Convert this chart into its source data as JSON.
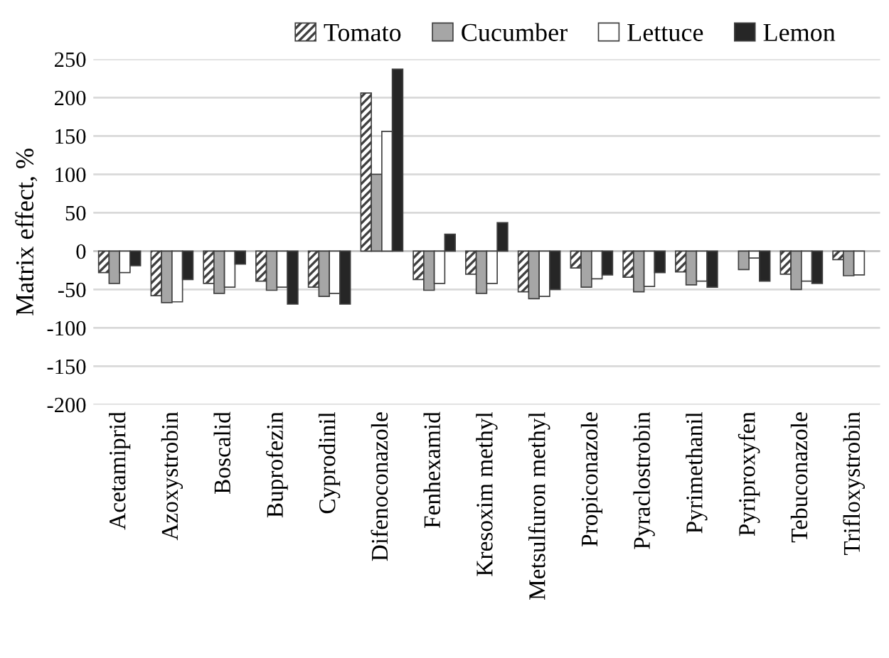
{
  "chart_data": {
    "type": "bar",
    "ylabel": "Matrix effect, %",
    "categories": [
      "Acetamiprid",
      "Azoxystrobin",
      "Boscalid",
      "Buprofezin",
      "Cyprodinil",
      "Difenoconazole",
      "Fenhexamid",
      "Kresoxim methyl",
      "Metsulfuron methyl",
      "Propiconazole",
      "Pyraclostrobin",
      "Pyrimethanil",
      "Pyriproxyfen",
      "Tebuconazole",
      "Trifloxystrobin"
    ],
    "series": [
      {
        "name": "Tomato",
        "color": "#404040",
        "values": [
          -28,
          -58,
          -42,
          -39,
          -47,
          206,
          -37,
          -30,
          -53,
          -22,
          -34,
          -27,
          null,
          -30,
          -11
        ]
      },
      {
        "name": "Cucumber",
        "color": "#a6a6a6",
        "values": [
          -42,
          -67,
          -55,
          -51,
          -59,
          100,
          -51,
          -55,
          -62,
          -47,
          -53,
          -44,
          -24,
          -50,
          -32
        ]
      },
      {
        "name": "Lettuce",
        "color": "#ffffff",
        "values": [
          -28,
          -66,
          -47,
          -47,
          -55,
          156,
          -42,
          -42,
          -59,
          -36,
          -46,
          -39,
          -9,
          -39,
          -31
        ]
      },
      {
        "name": "Lemon",
        "color": "#262626",
        "values": [
          -19,
          -37,
          -17,
          -69,
          -69,
          237,
          22,
          37,
          -50,
          -31,
          -28,
          -47,
          -39,
          -42,
          null
        ]
      }
    ],
    "ylim": [
      -200,
      250
    ],
    "yticks": [
      -200,
      -150,
      -100,
      -50,
      0,
      50,
      100,
      150,
      200,
      250
    ],
    "grid": "y",
    "legend": "top"
  }
}
